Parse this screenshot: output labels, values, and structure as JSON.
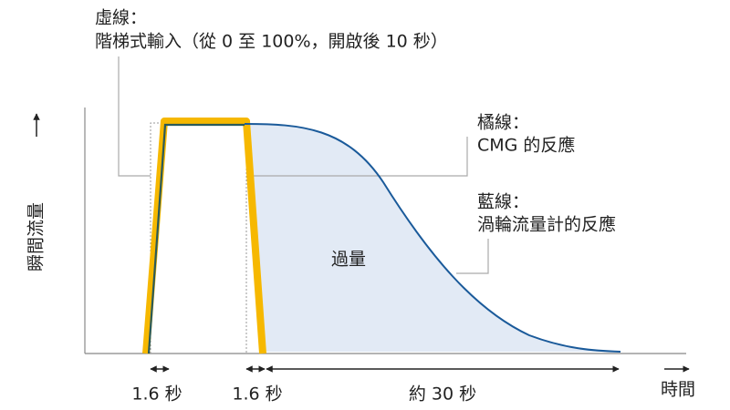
{
  "notes": {
    "dashed": {
      "title": "虛線：",
      "text": "階梯式輸入（從 0 至 100%，開啟後 10 秒）"
    },
    "orange": {
      "title": "橘線：",
      "text": "CMG 的反應"
    },
    "blue": {
      "title": "藍線：",
      "text": "渦輪流量計的反應"
    }
  },
  "area_label": "過量",
  "y_axis_label": "瞬間流量",
  "x_axis_label": "時間",
  "durations": [
    "1.6 秒",
    "1.6 秒",
    "約 30 秒"
  ]
}
